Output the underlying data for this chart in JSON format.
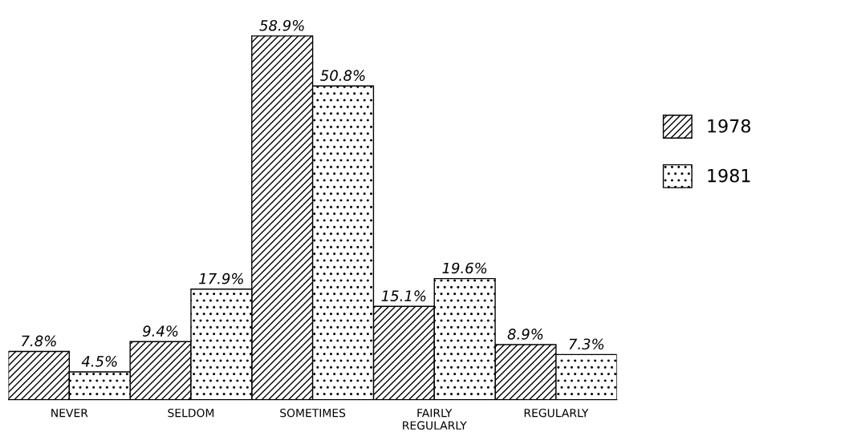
{
  "chart_data": {
    "type": "bar",
    "categories": [
      "NEVER",
      "SELDOM",
      "SOMETIMES",
      "FAIRLY\nREGULARLY",
      "REGULARLY"
    ],
    "series": [
      {
        "name": "1978",
        "color": "#000000",
        "values": [
          7.8,
          9.4,
          58.9,
          15.1,
          8.9
        ],
        "value_labels": [
          "7.8%",
          "9.4%",
          "58.9%",
          "15.1%",
          "8.9%"
        ]
      },
      {
        "name": "1981",
        "color": "#000000",
        "values": [
          4.5,
          17.9,
          50.8,
          19.6,
          7.3
        ],
        "value_labels": [
          "4.5%",
          "17.9%",
          "50.8%",
          "19.6%",
          "7.3%"
        ]
      }
    ],
    "legend": "right",
    "grid": false,
    "tick_labels": "x"
  }
}
